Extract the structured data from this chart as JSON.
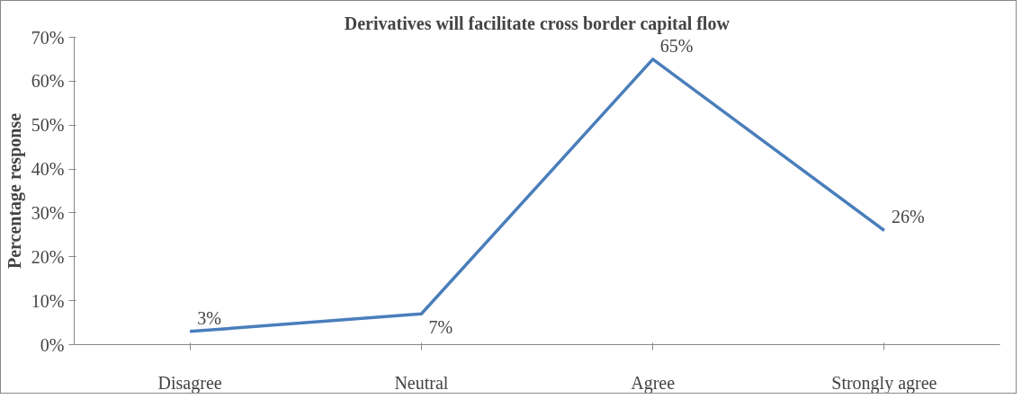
{
  "chart_data": {
    "type": "line",
    "title": "Derivatives will facilitate cross border capital flow",
    "ylabel": "Percentage response",
    "categories": [
      "Disagree",
      "Neutral",
      "Agree",
      "Strongly agree"
    ],
    "series": [
      {
        "color": "#4a7ebb",
        "values": [
          3,
          7,
          65,
          26
        ],
        "value_labels": [
          "3%",
          "7%",
          "65%",
          "26%"
        ]
      }
    ],
    "ylim": [
      0,
      70
    ],
    "yticks": [
      {
        "value": 0,
        "label": "0%"
      },
      {
        "value": 10,
        "label": "10%"
      },
      {
        "value": 20,
        "label": "20%"
      },
      {
        "value": 30,
        "label": "30%"
      },
      {
        "value": 40,
        "label": "40%"
      },
      {
        "value": 50,
        "label": "50%"
      },
      {
        "value": 60,
        "label": "60%"
      },
      {
        "value": 70,
        "label": "70%"
      }
    ],
    "grid": false,
    "marker": "none",
    "line_style": "solid"
  }
}
